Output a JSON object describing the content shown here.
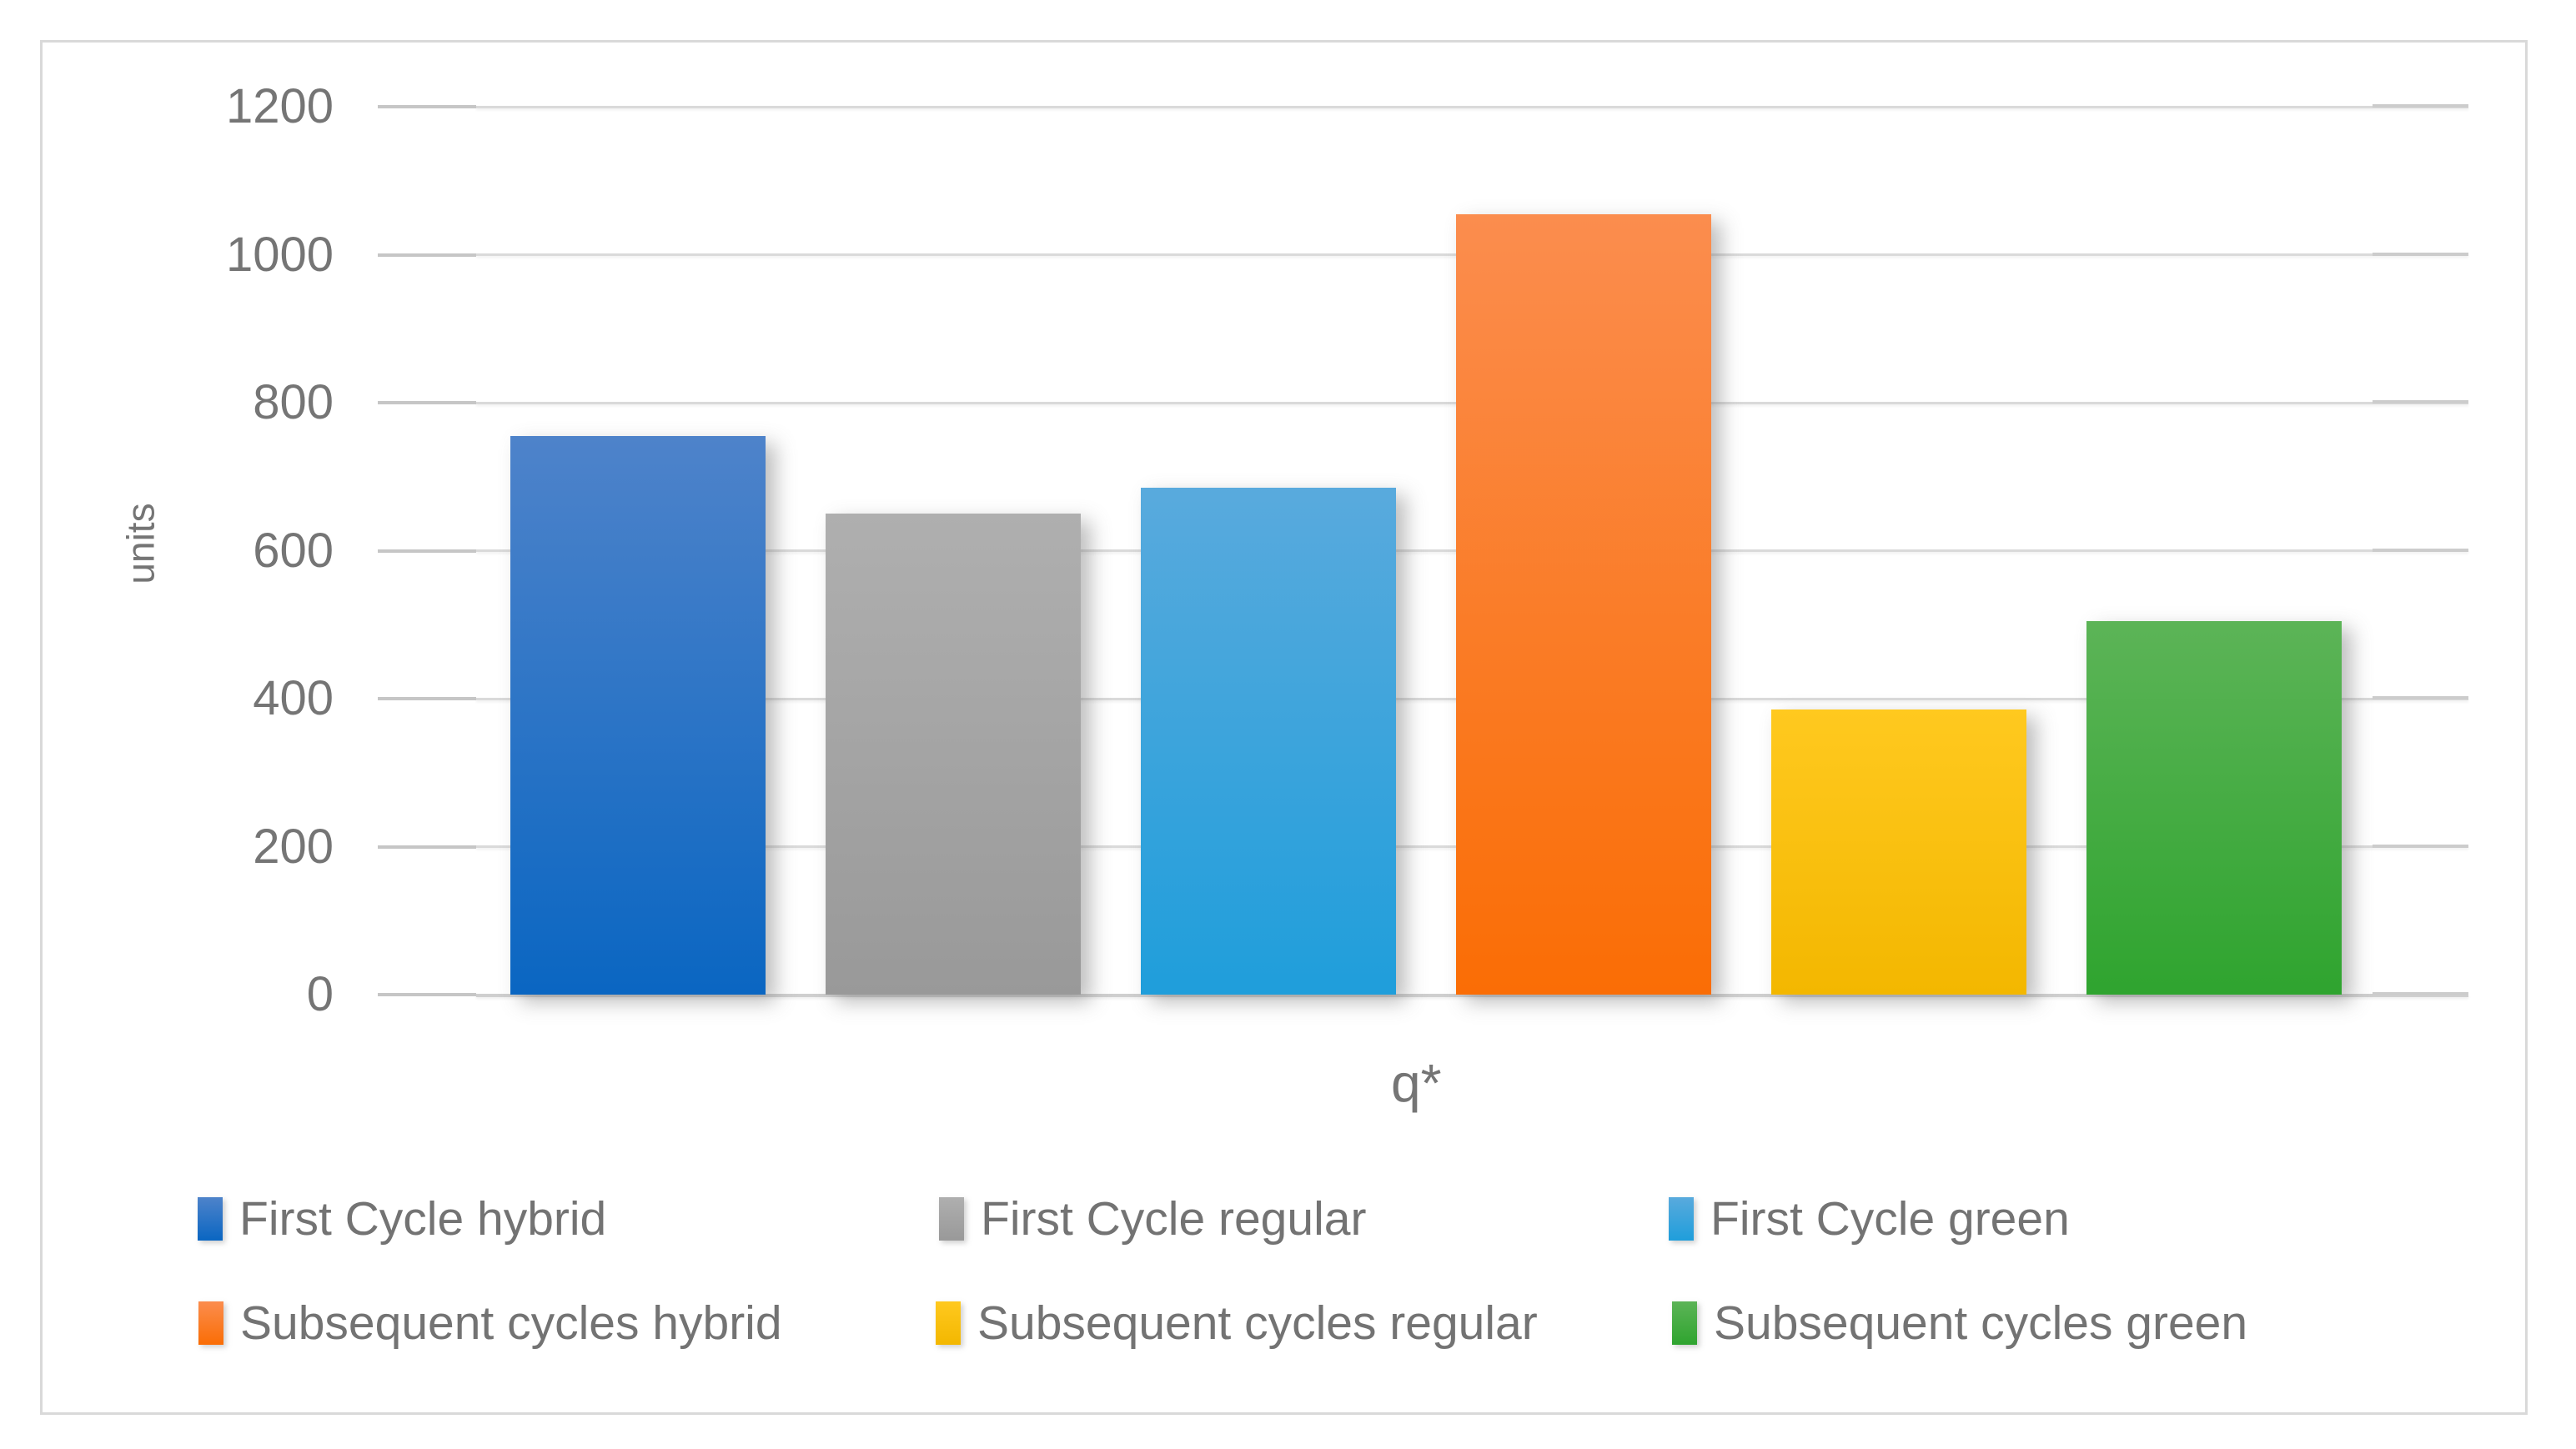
{
  "chart_data": {
    "type": "bar",
    "title": "",
    "xlabel": "q*",
    "ylabel": "units",
    "ylim": [
      0,
      1200
    ],
    "yticks": [
      0,
      200,
      400,
      600,
      800,
      1000,
      1200
    ],
    "grid": true,
    "legend_position": "bottom",
    "categories": [
      "q*"
    ],
    "series": [
      {
        "name": "First Cycle hybrid",
        "value": 755,
        "color_top": "#4E83CA",
        "color_bottom": "#0A66C2"
      },
      {
        "name": "First Cycle regular",
        "value": 650,
        "color_top": "#AFAFAF",
        "color_bottom": "#999999"
      },
      {
        "name": "First Cycle green",
        "value": 685,
        "color_top": "#59AADD",
        "color_bottom": "#1F9EDB"
      },
      {
        "name": "Subsequent cycles hybrid",
        "value": 1055,
        "color_top": "#FB8D4E",
        "color_bottom": "#FA6D05"
      },
      {
        "name": "Subsequent cycles regular",
        "value": 385,
        "color_top": "#FFC91F",
        "color_bottom": "#F3B700"
      },
      {
        "name": "Subsequent cycles green",
        "value": 505,
        "color_top": "#5CB457",
        "color_bottom": "#2FA42F"
      }
    ],
    "axis_text_color": "#757575",
    "gridline_color": "#D9D9D9"
  }
}
